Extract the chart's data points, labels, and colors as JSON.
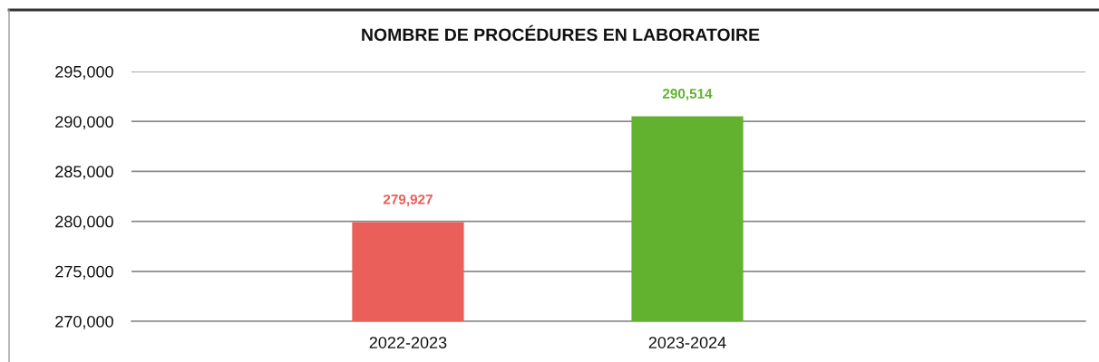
{
  "chart_data": {
    "type": "bar",
    "title": "NOMBRE DE PROCÉDURES EN LABORATOIRE",
    "categories": [
      "2022-2023",
      "2023-2024"
    ],
    "values": [
      279927,
      290514
    ],
    "colors": [
      "#eb5f5a",
      "#62b22f"
    ],
    "value_labels": [
      "279,927",
      "290,514"
    ],
    "ylim": [
      270000,
      295000
    ],
    "yticks": [
      {
        "value": 270000,
        "label": "270,000"
      },
      {
        "value": 275000,
        "label": "275,000"
      },
      {
        "value": 280000,
        "label": "280,000"
      },
      {
        "value": 285000,
        "label": "285,000"
      },
      {
        "value": 290000,
        "label": "290,000"
      },
      {
        "value": 295000,
        "label": "295,000"
      }
    ],
    "grid": "y",
    "legend": false
  }
}
